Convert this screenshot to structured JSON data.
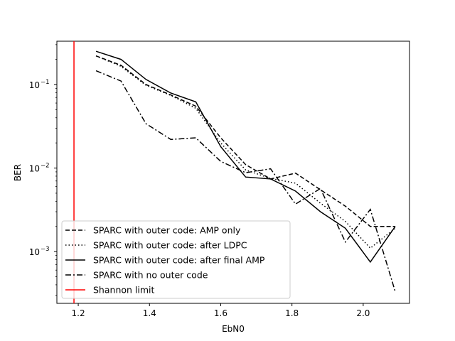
{
  "chart_data": {
    "type": "line",
    "title": "",
    "xlabel": "EbN0",
    "ylabel": "BER",
    "xlim": [
      1.14,
      2.13
    ],
    "ylim": [
      0.00024,
      0.33
    ],
    "yscale": "log",
    "grid": false,
    "legend_position": "lower-left",
    "x_ticks": [
      1.2,
      1.4,
      1.6,
      1.8,
      2.0
    ],
    "x_tick_labels": [
      "1.2",
      "1.4",
      "1.6",
      "1.8",
      "2.0"
    ],
    "y_ticks": [
      0.001,
      0.01,
      0.1
    ],
    "y_tick_labels": [
      "10",
      "10",
      "10"
    ],
    "y_tick_exponents": [
      "−3",
      "−2",
      "−1"
    ],
    "series": [
      {
        "name": "SPARC with outer code: AMP only",
        "style": "dashed",
        "color": "#000000",
        "x": [
          1.25,
          1.32,
          1.39,
          1.46,
          1.53,
          1.6,
          1.67,
          1.74,
          1.81,
          1.88,
          1.95,
          2.02,
          2.09
        ],
        "y": [
          0.22,
          0.17,
          0.1,
          0.075,
          0.055,
          0.023,
          0.011,
          0.0074,
          0.0087,
          0.0055,
          0.0035,
          0.002,
          0.002
        ]
      },
      {
        "name": "SPARC with outer code: after LDPC",
        "style": "dotted",
        "color": "#000000",
        "x": [
          1.25,
          1.32,
          1.39,
          1.46,
          1.53,
          1.6,
          1.67,
          1.74,
          1.81,
          1.88,
          1.95,
          2.02,
          2.09
        ],
        "y": [
          0.22,
          0.165,
          0.098,
          0.074,
          0.052,
          0.02,
          0.0095,
          0.0075,
          0.0066,
          0.0038,
          0.0023,
          0.0011,
          0.0019
        ]
      },
      {
        "name": "SPARC with outer code: after final AMP",
        "style": "solid",
        "color": "#000000",
        "x": [
          1.25,
          1.32,
          1.39,
          1.46,
          1.53,
          1.6,
          1.67,
          1.74,
          1.81,
          1.88,
          1.95,
          2.02,
          2.09
        ],
        "y": [
          0.25,
          0.2,
          0.115,
          0.079,
          0.062,
          0.018,
          0.0078,
          0.0074,
          0.0053,
          0.003,
          0.0019,
          0.00075,
          0.002
        ]
      },
      {
        "name": "SPARC with no outer code",
        "style": "dashdot",
        "color": "#000000",
        "x": [
          1.25,
          1.32,
          1.39,
          1.46,
          1.53,
          1.6,
          1.67,
          1.74,
          1.81,
          1.88,
          1.95,
          2.02,
          2.09
        ],
        "y": [
          0.146,
          0.11,
          0.034,
          0.022,
          0.023,
          0.012,
          0.0088,
          0.0098,
          0.0037,
          0.0057,
          0.0013,
          0.0032,
          0.00033
        ]
      }
    ],
    "vlines": [
      {
        "name": "Shannon limit",
        "x": 1.188,
        "color": "#ff0000",
        "style": "solid"
      }
    ]
  }
}
